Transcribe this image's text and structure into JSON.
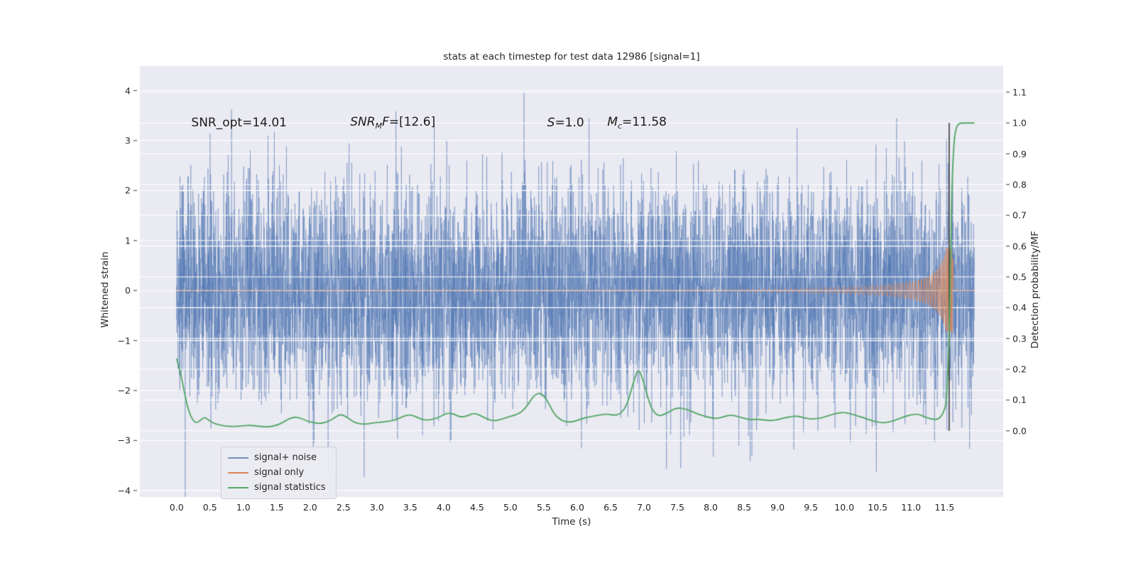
{
  "chart_data": {
    "type": "line",
    "title": "stats at each timestep for test data 12986 [signal=1]",
    "xlabel": "Time (s)",
    "ylabel_left": "Whitened strain",
    "ylabel_right": "Detection probability/MF",
    "background": "#eaeaf2",
    "grid_color": "#ffffff",
    "grid": "horizontal",
    "xlim": [
      -0.55,
      12.38
    ],
    "ylim_left": [
      -4.13,
      4.49
    ],
    "ylim_right": [
      -0.215,
      1.185
    ],
    "x_ticks": [
      {
        "v": 0.0,
        "label": "0.0"
      },
      {
        "v": 0.5,
        "label": "0.5"
      },
      {
        "v": 1.0,
        "label": "1.0"
      },
      {
        "v": 1.5,
        "label": "1.5"
      },
      {
        "v": 2.0,
        "label": "2.0"
      },
      {
        "v": 2.5,
        "label": "2.5"
      },
      {
        "v": 3.0,
        "label": "3.0"
      },
      {
        "v": 3.5,
        "label": "3.5"
      },
      {
        "v": 4.0,
        "label": "4.0"
      },
      {
        "v": 4.5,
        "label": "4.5"
      },
      {
        "v": 5.0,
        "label": "5.0"
      },
      {
        "v": 5.5,
        "label": "5.5"
      },
      {
        "v": 6.0,
        "label": "6.0"
      },
      {
        "v": 6.5,
        "label": "6.5"
      },
      {
        "v": 7.0,
        "label": "7.0"
      },
      {
        "v": 7.5,
        "label": "7.5"
      },
      {
        "v": 8.0,
        "label": "8.0"
      },
      {
        "v": 8.5,
        "label": "8.5"
      },
      {
        "v": 9.0,
        "label": "9.0"
      },
      {
        "v": 9.5,
        "label": "9.5"
      },
      {
        "v": 10.0,
        "label": "10.0"
      },
      {
        "v": 10.5,
        "label": "10.5"
      },
      {
        "v": 11.0,
        "label": "11.0"
      },
      {
        "v": 11.5,
        "label": "11.5"
      }
    ],
    "y_ticks_left": [
      {
        "v": 4,
        "label": "4"
      },
      {
        "v": 3,
        "label": "3"
      },
      {
        "v": 2,
        "label": "2"
      },
      {
        "v": 1,
        "label": "1"
      },
      {
        "v": 0,
        "label": "0"
      },
      {
        "v": -1,
        "label": "−1"
      },
      {
        "v": -2,
        "label": "−2"
      },
      {
        "v": -3,
        "label": "−3"
      },
      {
        "v": -4,
        "label": "−4"
      }
    ],
    "y_ticks_right": [
      {
        "v": 0.0,
        "label": "0.0"
      },
      {
        "v": 0.1,
        "label": "0.1"
      },
      {
        "v": 0.2,
        "label": "0.2"
      },
      {
        "v": 0.3,
        "label": "0.3"
      },
      {
        "v": 0.4,
        "label": "0.4"
      },
      {
        "v": 0.5,
        "label": "0.5"
      },
      {
        "v": 0.6,
        "label": "0.6"
      },
      {
        "v": 0.7,
        "label": "0.7"
      },
      {
        "v": 0.8,
        "label": "0.8"
      },
      {
        "v": 0.9,
        "label": "0.9"
      },
      {
        "v": 1.0,
        "label": "1.0"
      },
      {
        "v": 1.1,
        "label": "1.1"
      }
    ],
    "annotations": [
      {
        "text": "SNR_opt=14.01",
        "x": 0.22,
        "y": 3.35
      },
      {
        "pre": "SNR",
        "sub": "M",
        "post": "F",
        "tail": "=[12.6]",
        "x": 2.6,
        "y": 3.35
      },
      {
        "pre": "S",
        "tail": "=1.0",
        "x": 5.55,
        "y": 3.35
      },
      {
        "pre": "M",
        "sub": "c",
        "tail": "=11.58",
        "x": 6.45,
        "y": 3.35
      }
    ],
    "event_line": {
      "x": 11.57,
      "color": "#3a3a3a",
      "axis": "right",
      "y_from": 0.0,
      "y_to": 1.0
    },
    "legend": {
      "position": "lower left",
      "items": [
        "signal+ noise",
        "signal only",
        "signal statistics"
      ]
    },
    "series": [
      {
        "name": "signal+ noise",
        "type": "noise_plus_signal",
        "axis": "left",
        "color": "#4c72b0",
        "alpha": 0.55,
        "noise_std": 1.05,
        "seed": 12986,
        "t_start": 0.0,
        "t_end": 11.95,
        "n_samples": 6000
      },
      {
        "name": "signal only",
        "type": "chirp",
        "axis": "left",
        "color": "#dd8452",
        "alpha": 0.9,
        "t_merger": 11.62,
        "amp_coef": 0.12,
        "amp_eps": 0.05,
        "amp_max": 0.85,
        "freq_coef": 18,
        "freq_exp": -0.375,
        "ringdown_tau": 0.015
      },
      {
        "name": "signal statistics",
        "type": "line",
        "axis": "right",
        "color": "#55a868",
        "alpha": 1.0,
        "points": [
          [
            0.0,
            0.235
          ],
          [
            0.06,
            0.19
          ],
          [
            0.12,
            0.12
          ],
          [
            0.18,
            0.065
          ],
          [
            0.24,
            0.035
          ],
          [
            0.3,
            0.025
          ],
          [
            0.36,
            0.035
          ],
          [
            0.42,
            0.045
          ],
          [
            0.48,
            0.035
          ],
          [
            0.55,
            0.025
          ],
          [
            0.65,
            0.018
          ],
          [
            0.75,
            0.015
          ],
          [
            0.85,
            0.014
          ],
          [
            0.95,
            0.015
          ],
          [
            1.05,
            0.018
          ],
          [
            1.15,
            0.017
          ],
          [
            1.25,
            0.014
          ],
          [
            1.35,
            0.013
          ],
          [
            1.45,
            0.015
          ],
          [
            1.55,
            0.022
          ],
          [
            1.65,
            0.035
          ],
          [
            1.75,
            0.045
          ],
          [
            1.85,
            0.042
          ],
          [
            1.95,
            0.032
          ],
          [
            2.05,
            0.026
          ],
          [
            2.15,
            0.024
          ],
          [
            2.25,
            0.028
          ],
          [
            2.35,
            0.04
          ],
          [
            2.45,
            0.055
          ],
          [
            2.55,
            0.045
          ],
          [
            2.65,
            0.028
          ],
          [
            2.75,
            0.022
          ],
          [
            2.85,
            0.022
          ],
          [
            2.95,
            0.026
          ],
          [
            3.05,
            0.028
          ],
          [
            3.15,
            0.03
          ],
          [
            3.25,
            0.034
          ],
          [
            3.35,
            0.042
          ],
          [
            3.45,
            0.052
          ],
          [
            3.55,
            0.05
          ],
          [
            3.65,
            0.038
          ],
          [
            3.75,
            0.034
          ],
          [
            3.85,
            0.038
          ],
          [
            3.95,
            0.046
          ],
          [
            4.05,
            0.058
          ],
          [
            4.15,
            0.055
          ],
          [
            4.25,
            0.044
          ],
          [
            4.35,
            0.048
          ],
          [
            4.45,
            0.058
          ],
          [
            4.55,
            0.05
          ],
          [
            4.65,
            0.038
          ],
          [
            4.75,
            0.032
          ],
          [
            4.85,
            0.036
          ],
          [
            4.95,
            0.044
          ],
          [
            5.05,
            0.05
          ],
          [
            5.15,
            0.058
          ],
          [
            5.25,
            0.08
          ],
          [
            5.35,
            0.115
          ],
          [
            5.45,
            0.125
          ],
          [
            5.55,
            0.1
          ],
          [
            5.65,
            0.055
          ],
          [
            5.75,
            0.035
          ],
          [
            5.85,
            0.028
          ],
          [
            5.95,
            0.03
          ],
          [
            6.05,
            0.038
          ],
          [
            6.15,
            0.044
          ],
          [
            6.25,
            0.048
          ],
          [
            6.35,
            0.052
          ],
          [
            6.45,
            0.055
          ],
          [
            6.55,
            0.05
          ],
          [
            6.65,
            0.055
          ],
          [
            6.75,
            0.085
          ],
          [
            6.85,
            0.165
          ],
          [
            6.92,
            0.205
          ],
          [
            7.0,
            0.155
          ],
          [
            7.1,
            0.075
          ],
          [
            7.2,
            0.048
          ],
          [
            7.3,
            0.052
          ],
          [
            7.4,
            0.065
          ],
          [
            7.5,
            0.075
          ],
          [
            7.6,
            0.072
          ],
          [
            7.7,
            0.065
          ],
          [
            7.8,
            0.055
          ],
          [
            7.9,
            0.048
          ],
          [
            8.0,
            0.042
          ],
          [
            8.1,
            0.04
          ],
          [
            8.2,
            0.046
          ],
          [
            8.3,
            0.052
          ],
          [
            8.4,
            0.047
          ],
          [
            8.5,
            0.04
          ],
          [
            8.6,
            0.036
          ],
          [
            8.7,
            0.038
          ],
          [
            8.8,
            0.035
          ],
          [
            8.9,
            0.033
          ],
          [
            9.0,
            0.036
          ],
          [
            9.1,
            0.042
          ],
          [
            9.2,
            0.046
          ],
          [
            9.3,
            0.048
          ],
          [
            9.4,
            0.042
          ],
          [
            9.5,
            0.038
          ],
          [
            9.6,
            0.04
          ],
          [
            9.7,
            0.044
          ],
          [
            9.8,
            0.052
          ],
          [
            9.9,
            0.058
          ],
          [
            10.0,
            0.06
          ],
          [
            10.1,
            0.055
          ],
          [
            10.2,
            0.048
          ],
          [
            10.3,
            0.042
          ],
          [
            10.4,
            0.034
          ],
          [
            10.5,
            0.028
          ],
          [
            10.6,
            0.026
          ],
          [
            10.7,
            0.03
          ],
          [
            10.8,
            0.038
          ],
          [
            10.9,
            0.046
          ],
          [
            11.0,
            0.052
          ],
          [
            11.1,
            0.055
          ],
          [
            11.2,
            0.046
          ],
          [
            11.3,
            0.038
          ],
          [
            11.4,
            0.036
          ],
          [
            11.48,
            0.055
          ],
          [
            11.54,
            0.1
          ],
          [
            11.58,
            0.4
          ],
          [
            11.61,
            0.78
          ],
          [
            11.64,
            0.94
          ],
          [
            11.68,
            0.99
          ],
          [
            11.73,
            1.0
          ],
          [
            11.8,
            1.0
          ],
          [
            11.88,
            1.0
          ],
          [
            11.95,
            1.0
          ]
        ]
      }
    ]
  }
}
